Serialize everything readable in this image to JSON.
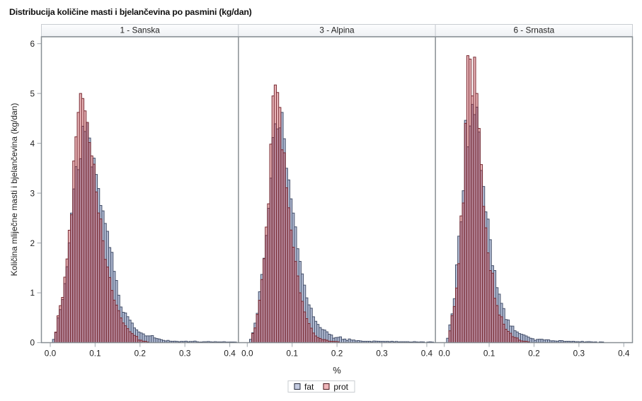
{
  "title": "Distribucija količine masti i bjelančevina po pasmini (kg/dan)",
  "x_axis_label": "%",
  "y_axis_label": "Količina mliječne masti i bjelančevina (kg/dan)",
  "legend": {
    "items": [
      {
        "label": "fat",
        "fill": "#c3cbe1",
        "border": "#23293a"
      },
      {
        "label": "prot",
        "fill": "#efb6ba",
        "border": "#471318"
      }
    ]
  },
  "chart_data": {
    "type": "bar",
    "subtype": "overlaid-density-histogram-panels",
    "bin_width": 0.005,
    "bin_start": 0.0,
    "x_ticks": [
      "0.0",
      "0.1",
      "0.2",
      "0.3",
      "0.4"
    ],
    "y_ticks": [
      "0",
      "1",
      "2",
      "3",
      "4",
      "5",
      "6"
    ],
    "xlim": [
      -0.0197,
      0.4193
    ],
    "ylim": [
      0,
      6.135
    ],
    "grid": false,
    "legend_position": "bottom-center",
    "title": "Distribucija količine masti i bjelančevina po pasmini (kg/dan)",
    "xlabel": "%",
    "ylabel": "Količina mliječne masti i bjelančevina (kg/dan)",
    "colors": {
      "fat_fill": "#b2bcd4",
      "fat_stroke": "#45506a",
      "prot_fill": "#c02e37",
      "prot_stroke": "#792b33",
      "prot_fill_opacity": 0.35,
      "prot_stroke_opacity": 1.0
    },
    "panels": [
      {
        "label": "1 - Sanska",
        "series": [
          {
            "name": "fat",
            "values": [
              0.0,
              0.066,
              0.205,
              0.498,
              0.664,
              0.865,
              1.185,
              1.524,
              2.003,
              2.6,
              3.084,
              3.531,
              3.472,
              3.691,
              4.343,
              4.237,
              4.42,
              4.107,
              3.527,
              3.703,
              3.375,
              3.094,
              2.753,
              2.644,
              2.393,
              2.235,
              1.909,
              1.813,
              1.431,
              1.249,
              0.952,
              0.717,
              0.61,
              0.596,
              0.521,
              0.452,
              0.394,
              0.296,
              0.258,
              0.215,
              0.195,
              0.175,
              0.136,
              0.136,
              0.136,
              0.142,
              0.095,
              0.083,
              0.075,
              0.06,
              0.046,
              0.035,
              0.046,
              0.03,
              0.028,
              0.03,
              0.027,
              0.02,
              0.026,
              0.024,
              0.031,
              0.02,
              0.025,
              0.025,
              0.032,
              0.02,
              0.013,
              0.015,
              0.019,
              0.02,
              0.023,
              0.018,
              0.015,
              0.019,
              0.016,
              0.016,
              0.016,
              0.02,
              0.013,
              0.012,
              0.015,
              0.014,
              0.013,
              0.0
            ]
          },
          {
            "name": "prot",
            "values": [
              0.0,
              0.0,
              0.212,
              0.54,
              0.743,
              0.909,
              1.315,
              1.68,
              2.257,
              2.566,
              3.646,
              4.131,
              4.62,
              5.0,
              4.9,
              4.65,
              4.42,
              4.016,
              3.748,
              3.582,
              3.024,
              2.602,
              2.484,
              2.046,
              1.671,
              1.518,
              1.308,
              1.048,
              0.854,
              0.754,
              0.643,
              0.496,
              0.395,
              0.339,
              0.282,
              0.22,
              0.183,
              0.145,
              0.126,
              0.054,
              0.049,
              0.03,
              0.028,
              0.013,
              0.0,
              0.0,
              0.0,
              0.0,
              0.0,
              0.0,
              0.0,
              0.0,
              0.0,
              0.0,
              0.0,
              0.0,
              0.0,
              0.0,
              0.0,
              0.0,
              0.0,
              0.0,
              0.0,
              0.0,
              0.0,
              0.0,
              0.0,
              0.0,
              0.0,
              0.0,
              0.0,
              0.0,
              0.0,
              0.0,
              0.0,
              0.0,
              0.0,
              0.0,
              0.0,
              0.0,
              0.0,
              0.0,
              0.0,
              0.0
            ]
          }
        ]
      },
      {
        "label": "3 - Alpina",
        "series": [
          {
            "name": "fat",
            "values": [
              0.0,
              0.068,
              0.201,
              0.392,
              0.588,
              1.021,
              1.37,
              1.694,
              2.152,
              2.696,
              3.301,
              4.115,
              4.392,
              4.289,
              4.311,
              4.62,
              4.092,
              3.5,
              3.266,
              2.886,
              2.601,
              2.323,
              1.885,
              1.632,
              1.38,
              1.155,
              0.899,
              0.759,
              0.692,
              0.519,
              0.429,
              0.367,
              0.303,
              0.265,
              0.254,
              0.218,
              0.17,
              0.154,
              0.091,
              0.103,
              0.107,
              0.117,
              0.066,
              0.072,
              0.045,
              0.075,
              0.054,
              0.053,
              0.038,
              0.042,
              0.035,
              0.029,
              0.029,
              0.029,
              0.028,
              0.022,
              0.034,
              0.03,
              0.029,
              0.027,
              0.026,
              0.025,
              0.026,
              0.021,
              0.028,
              0.02,
              0.025,
              0.017,
              0.019,
              0.019,
              0.02,
              0.02,
              0.014,
              0.015,
              0.021,
              0.016,
              0.012,
              0.018,
              0.016,
              0.0,
              0.013,
              0.018,
              0.013,
              0.0
            ]
          },
          {
            "name": "prot",
            "values": [
              0.0,
              0.0,
              0.184,
              0.296,
              0.566,
              0.852,
              1.267,
              1.686,
              2.32,
              2.786,
              3.984,
              4.95,
              5.17,
              5.02,
              4.72,
              3.871,
              3.811,
              3.108,
              2.707,
              2.26,
              1.915,
              1.63,
              1.339,
              1.0,
              0.83,
              0.618,
              0.482,
              0.383,
              0.291,
              0.194,
              0.134,
              0.102,
              0.085,
              0.062,
              0.062,
              0.049,
              0.031,
              0.028,
              0.026,
              0.024,
              0.019,
              0.0,
              0.0,
              0.0,
              0.0,
              0.0,
              0.0,
              0.0,
              0.0,
              0.0,
              0.0,
              0.0,
              0.0,
              0.0,
              0.0,
              0.0,
              0.0,
              0.0,
              0.0,
              0.0,
              0.0,
              0.0,
              0.0,
              0.0,
              0.0,
              0.0,
              0.0,
              0.0,
              0.0,
              0.0,
              0.0,
              0.0,
              0.0,
              0.0,
              0.0,
              0.0,
              0.0,
              0.0,
              0.0,
              0.0,
              0.0,
              0.0,
              0.0,
              0.0
            ]
          }
        ]
      },
      {
        "label": "6 - Srnasta",
        "series": [
          {
            "name": "fat",
            "values": [
              0.0,
              0.088,
              0.357,
              0.579,
              0.884,
              1.562,
              2.137,
              2.425,
              3.05,
              4.461,
              3.929,
              4.347,
              4.78,
              4.577,
              4.725,
              4.227,
              3.456,
              3.134,
              2.625,
              2.48,
              2.066,
              1.545,
              1.447,
              1.104,
              0.974,
              0.79,
              0.685,
              0.464,
              0.456,
              0.334,
              0.331,
              0.24,
              0.215,
              0.183,
              0.168,
              0.154,
              0.134,
              0.111,
              0.088,
              0.079,
              0.048,
              0.065,
              0.07,
              0.07,
              0.053,
              0.058,
              0.057,
              0.038,
              0.039,
              0.034,
              0.031,
              0.042,
              0.04,
              0.027,
              0.029,
              0.028,
              0.025,
              0.028,
              0.022,
              0.022,
              0.017,
              0.026,
              0.013,
              0.02,
              0.022,
              0.017,
              0.013,
              0.016,
              0.0,
              0.016,
              0.014,
              0.0,
              0.0,
              0.0,
              0.0,
              0.0,
              0.0,
              0.0,
              0.0,
              0.0,
              0.0,
              0.0,
              0.0,
              0.0
            ]
          },
          {
            "name": "prot",
            "values": [
              0.0,
              0.0,
              0.238,
              0.542,
              0.726,
              1.097,
              1.586,
              2.544,
              2.803,
              4.4,
              5.76,
              5.69,
              4.95,
              5.73,
              5.0,
              4.3,
              3.575,
              2.735,
              2.305,
              1.802,
              1.447,
              1.394,
              0.891,
              0.745,
              0.556,
              0.519,
              0.371,
              0.267,
              0.227,
              0.189,
              0.12,
              0.102,
              0.094,
              0.051,
              0.035,
              0.03,
              0.028,
              0.017,
              0.0,
              0.0,
              0.0,
              0.0,
              0.0,
              0.0,
              0.0,
              0.0,
              0.0,
              0.0,
              0.0,
              0.0,
              0.0,
              0.0,
              0.0,
              0.0,
              0.0,
              0.0,
              0.0,
              0.0,
              0.0,
              0.0,
              0.0,
              0.0,
              0.0,
              0.0,
              0.0,
              0.0,
              0.0,
              0.0,
              0.0,
              0.0,
              0.0,
              0.0,
              0.0,
              0.0,
              0.0,
              0.0,
              0.0,
              0.0,
              0.0,
              0.0,
              0.0,
              0.0,
              0.0,
              0.0
            ]
          }
        ]
      }
    ]
  }
}
